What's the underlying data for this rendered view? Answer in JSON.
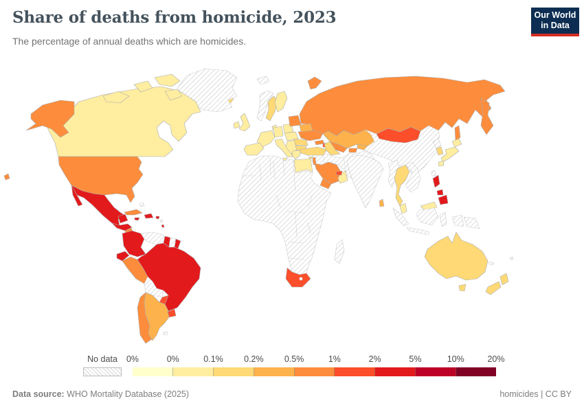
{
  "header": {
    "title": "Share of deaths from homicide, 2023",
    "subtitle": "The percentage of annual deaths which are homicides."
  },
  "logo": {
    "line1": "Our World",
    "line2": "in Data"
  },
  "legend": {
    "no_data_label": "No data",
    "tick_labels": [
      "0%",
      "0%",
      "0.1%",
      "0.2%",
      "0.5%",
      "1%",
      "2%",
      "5%",
      "10%",
      "20%"
    ],
    "bin_colors": [
      "#ffffcc",
      "#ffeda0",
      "#fed976",
      "#feb24c",
      "#fd8d3c",
      "#fc4e2a",
      "#e31a1c",
      "#bd0026",
      "#800026"
    ]
  },
  "footer": {
    "source_label": "Data source:",
    "source_value": " WHO Mortality Database (2025)",
    "attribution": "homicides | CC BY"
  },
  "colors": {
    "logo_bg": "#0d2e52",
    "logo_accent": "#d42b21",
    "title_text": "#44525c",
    "subtitle_text": "#737373",
    "country_border": "#a8adb1",
    "no_data_border": "#cccccc"
  },
  "chart_data": {
    "type": "choropleth",
    "title": "Share of deaths from homicide, 2023",
    "unit": "%",
    "year": 2023,
    "bin_edges": [
      "0%",
      "0%",
      "0.1%",
      "0.2%",
      "0.5%",
      "1%",
      "2%",
      "5%",
      "10%",
      "20%"
    ],
    "bin_colors": [
      "#ffffcc",
      "#ffeda0",
      "#fed976",
      "#feb24c",
      "#fd8d3c",
      "#fc4e2a",
      "#e31a1c",
      "#bd0026",
      "#800026"
    ],
    "no_data_style": "hatched",
    "countries": {
      "canada": 1,
      "greenland": "no_data",
      "united-states": 4,
      "mexico": 6,
      "guatemala": 6,
      "nicaragua": 4,
      "costa-rica-panama": 6,
      "cuba": 4,
      "dominican-republic": 6,
      "jamaica": 6,
      "puerto-rico": 6,
      "bahamas": "no_data",
      "lesser-antilles": "no_data",
      "martinique": 6,
      "colombia": 6,
      "venezuela": "no_data",
      "guyana": 6,
      "suriname": "no_data",
      "french-guiana": 6,
      "ecuador": 6,
      "peru": 4,
      "brazil": 6,
      "bolivia": "no_data",
      "paraguay": 5,
      "uruguay": 5,
      "argentina": 3,
      "chile": 4,
      "falkland-islands": "no_data",
      "iceland": 2,
      "norway": "no_data",
      "sweden": 2,
      "finland": 1,
      "denmark": 1,
      "united-kingdom": 1,
      "ireland": 1,
      "france": 1,
      "spain": 1,
      "germany": 1,
      "poland": 1,
      "central-europe": 1,
      "italy": 1,
      "western-balkans": 1,
      "romania": 2,
      "bulgaria": 2,
      "greece": 1,
      "baltic-states": 4,
      "belarus": 3,
      "ukraine": 4,
      "turkey": 2,
      "cyprus": 2,
      "russia": 4,
      "svalbard": "no_data",
      "kazakhstan": 3,
      "uzbekistan": 4,
      "turkmenistan": 2,
      "kyrgyzstan": 3,
      "tajikistan": 4,
      "georgia": 4,
      "azerbaijan": 5,
      "southwest-asia": "no_data",
      "israel": 4,
      "saudi-arabia": 4,
      "yemen": 4,
      "oman": 1,
      "united-arab-emirates": 5,
      "egypt": 1,
      "africa": "no_data",
      "south-africa": 5,
      "madagascar": "no_data",
      "india": "no_data",
      "sri-lanka": 3,
      "china": "no_data",
      "mongolia": 5,
      "north-korea": "no_data",
      "south-korea": 2,
      "japan": 1,
      "taiwan": "no_data",
      "myanmar": "no_data",
      "thailand": 2,
      "indochina": "no_data",
      "malaysia": 1,
      "indonesia": "no_data",
      "papua-new-guinea": "no_data",
      "philippines": 6,
      "australia": 2,
      "new-zealand": 2,
      "new-caledonia": "no_data",
      "fiji": "no_data"
    }
  }
}
